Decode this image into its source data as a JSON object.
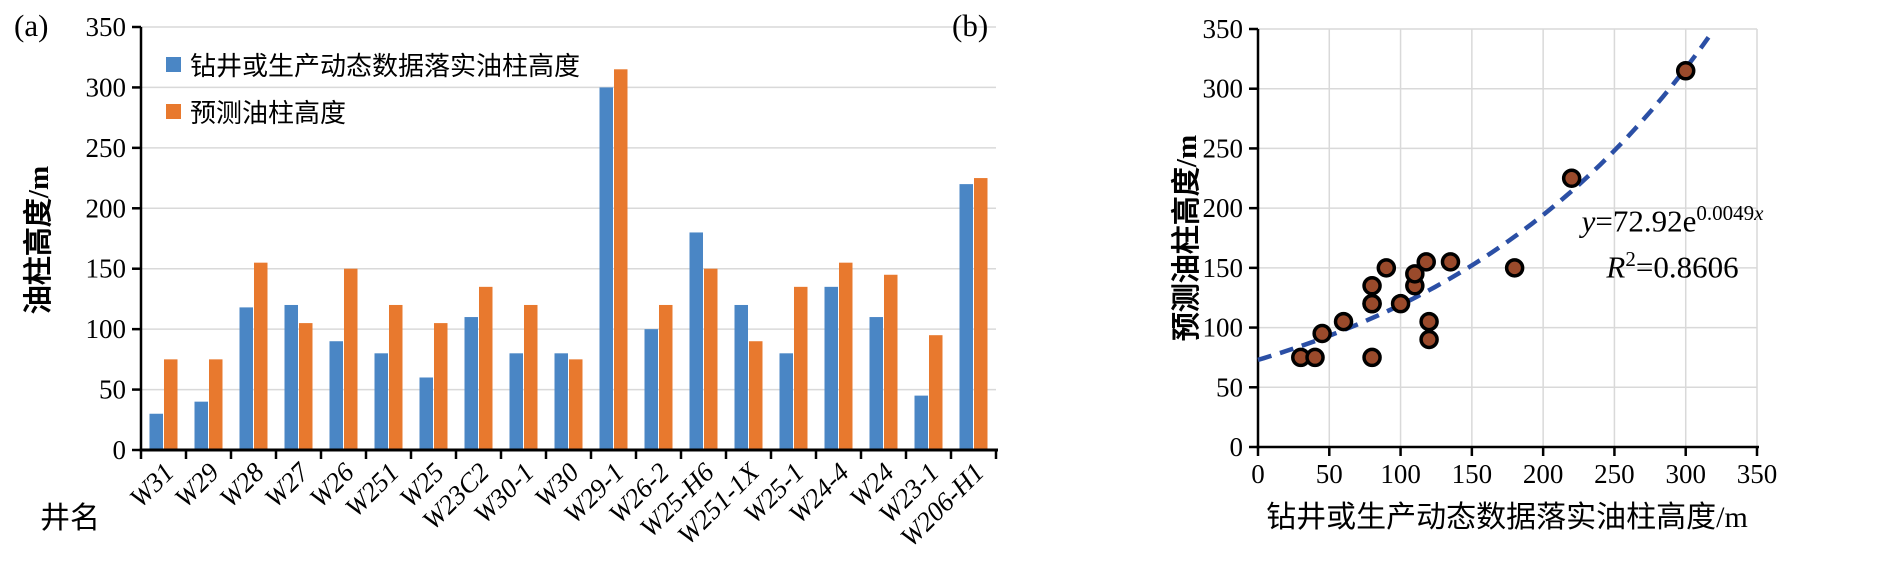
{
  "figure": {
    "panel_a_label": "(a)",
    "panel_b_label": "(b)"
  },
  "panel_a": {
    "ylabel": "油柱高度/m",
    "xlabel": "井名",
    "legend": [
      {
        "name": "actual",
        "label": "钻井或生产动态数据落实油柱高度",
        "color": "#4A86C5"
      },
      {
        "name": "predicted",
        "label": "预测油柱高度",
        "color": "#E8792E"
      }
    ]
  },
  "panel_b": {
    "ylabel": "预测油柱高度/m",
    "xlabel": "钻井或生产动态数据落实油柱高度/m",
    "equation": {
      "lhs": "y",
      "body": "=72.92e",
      "exp_num": "0.0049",
      "exp_var": "x",
      "r_label": "R",
      "r_exp": "2",
      "r_value": "=0.8606"
    }
  },
  "chart_data": [
    {
      "type": "bar",
      "panel": "a",
      "title": "",
      "xlabel": "井名",
      "ylabel": "油柱高度/m",
      "ylim": [
        0,
        350
      ],
      "yticks": [
        0,
        50,
        100,
        150,
        200,
        250,
        300,
        350
      ],
      "grid": "horizontal",
      "gridline_color": "#D9D9D9",
      "legend_position": "top-left-inside",
      "categories": [
        "W31",
        "W29",
        "W28",
        "W27",
        "W26",
        "W251",
        "W25",
        "W23C2",
        "W30-1",
        "W30",
        "W29-1",
        "W26-2",
        "W25-H6",
        "W251-1X",
        "W25-1",
        "W24-4",
        "W24",
        "W23-1",
        "W206-H1"
      ],
      "series": [
        {
          "name": "钻井或生产动态数据落实油柱高度",
          "color": "#4A86C5",
          "values": [
            30,
            40,
            118,
            120,
            90,
            80,
            60,
            110,
            80,
            80,
            300,
            100,
            180,
            120,
            80,
            135,
            110,
            45,
            220
          ]
        },
        {
          "name": "预测油柱高度",
          "color": "#E8792E",
          "values": [
            75,
            75,
            155,
            105,
            150,
            120,
            105,
            135,
            120,
            75,
            315,
            120,
            150,
            90,
            135,
            155,
            145,
            95,
            225
          ]
        }
      ]
    },
    {
      "type": "scatter",
      "panel": "b",
      "title": "",
      "xlabel": "钻井或生产动态数据落实油柱高度/m",
      "ylabel": "预测油柱高度/m",
      "xlim": [
        0,
        350
      ],
      "ylim": [
        0,
        350
      ],
      "xticks": [
        0,
        50,
        100,
        150,
        200,
        250,
        300,
        350
      ],
      "yticks": [
        0,
        50,
        100,
        150,
        200,
        250,
        300,
        350
      ],
      "grid": "both",
      "gridline_color": "#D9D9D9",
      "point_color": "#9A4A2B",
      "point_stroke": "#000000",
      "points": [
        {
          "well": "W31",
          "x": 30,
          "y": 75
        },
        {
          "well": "W29",
          "x": 40,
          "y": 75
        },
        {
          "well": "W28",
          "x": 118,
          "y": 155
        },
        {
          "well": "W27",
          "x": 120,
          "y": 105
        },
        {
          "well": "W26",
          "x": 90,
          "y": 150
        },
        {
          "well": "W251",
          "x": 80,
          "y": 120
        },
        {
          "well": "W25",
          "x": 60,
          "y": 105
        },
        {
          "well": "W23C2",
          "x": 110,
          "y": 135
        },
        {
          "well": "W30-1",
          "x": 80,
          "y": 120
        },
        {
          "well": "W30",
          "x": 80,
          "y": 75
        },
        {
          "well": "W29-1",
          "x": 300,
          "y": 315
        },
        {
          "well": "W26-2",
          "x": 100,
          "y": 120
        },
        {
          "well": "W25-H6",
          "x": 180,
          "y": 150
        },
        {
          "well": "W251-1X",
          "x": 120,
          "y": 90
        },
        {
          "well": "W25-1",
          "x": 80,
          "y": 135
        },
        {
          "well": "W24-4",
          "x": 135,
          "y": 155
        },
        {
          "well": "W24",
          "x": 110,
          "y": 145
        },
        {
          "well": "W23-1",
          "x": 45,
          "y": 95
        },
        {
          "well": "W206-H1",
          "x": 220,
          "y": 225
        }
      ],
      "trendline": {
        "style": "dashed",
        "color": "#2B4FA5",
        "equation": "y=72.92e^(0.0049x)",
        "a": 72.92,
        "b": 0.0049,
        "r2": 0.8606,
        "x_range": [
          0,
          318
        ]
      }
    }
  ]
}
